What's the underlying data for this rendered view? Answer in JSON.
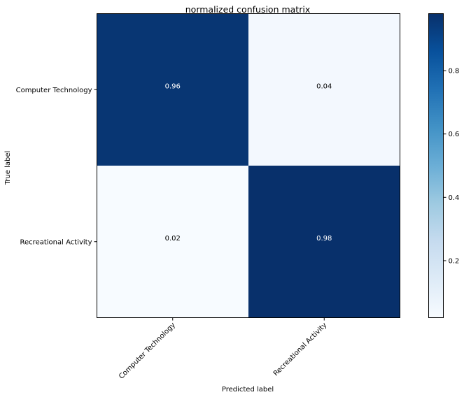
{
  "chart_data": {
    "type": "heatmap",
    "title": "normalized confusion matrix",
    "xlabel": "Predicted label",
    "ylabel": "True label",
    "x_categories": [
      "Computer Technology",
      "Recreational Activity"
    ],
    "y_categories": [
      "Computer Technology",
      "Recreational Activity"
    ],
    "values": [
      [
        0.96,
        0.04
      ],
      [
        0.02,
        0.98
      ]
    ],
    "cell_labels": [
      [
        "0.96",
        "0.04"
      ],
      [
        "0.02",
        "0.98"
      ]
    ],
    "colormap": "Blues",
    "colorbar": {
      "range": [
        0.02,
        0.98
      ],
      "ticks": [
        0.2,
        0.4,
        0.6,
        0.8
      ],
      "tick_labels": [
        "0.2",
        "0.4",
        "0.6",
        "0.8"
      ]
    },
    "grid": false,
    "x_tick_rotation_deg": 45
  }
}
